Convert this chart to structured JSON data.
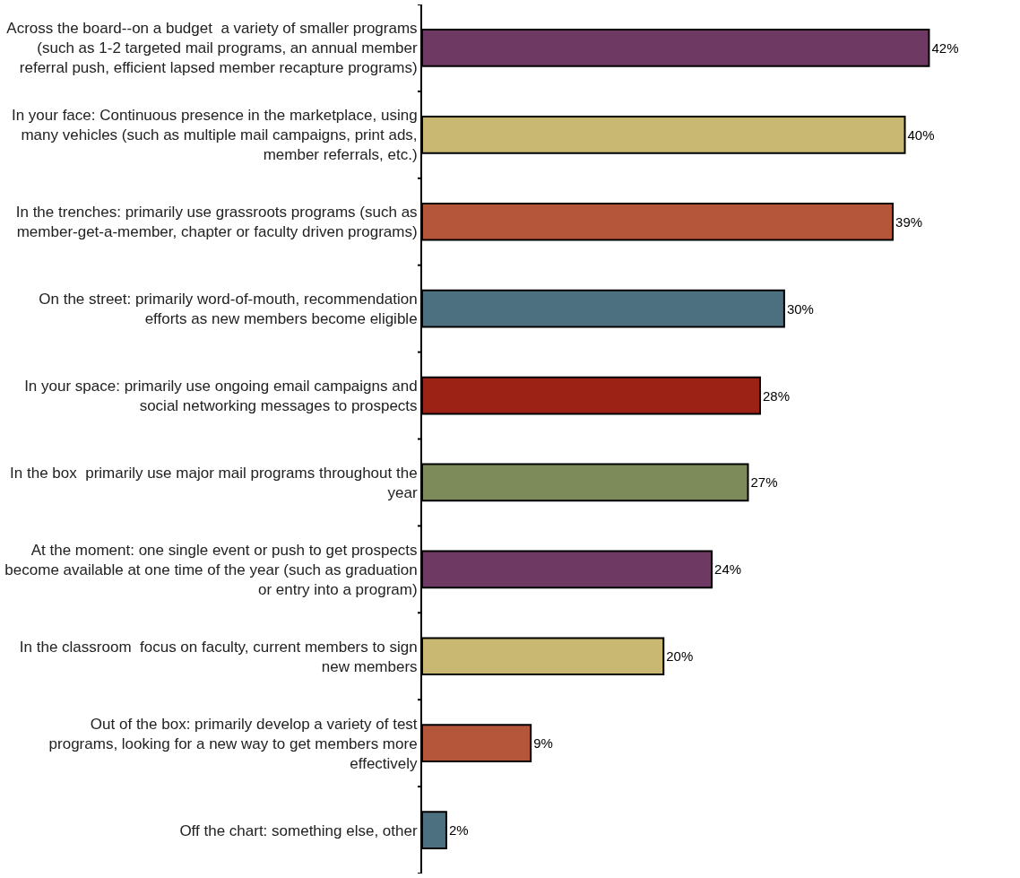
{
  "chart_data": {
    "type": "bar",
    "orientation": "horizontal",
    "categories": [
      "Across the board--on a budget  a variety of smaller programs (such as 1-2 targeted mail programs, an annual member referral push, efficient lapsed member recapture programs)",
      "In your face: Continuous presence in the marketplace, using many vehicles (such as multiple mail campaigns, print ads, member referrals, etc.)",
      "In the trenches: primarily use grassroots programs (such as member-get-a-member, chapter or faculty driven programs)",
      "On the street: primarily word-of-mouth, recommendation efforts as new members become eligible",
      "In your space: primarily use ongoing email campaigns and social networking messages to prospects",
      "In the box  primarily use major mail programs throughout the year",
      "At the moment: one single event or push to get prospects become available at one time of the year (such as graduation or entry into a program)",
      "In the classroom  focus on faculty, current members to sign new members",
      "Out of the box: primarily develop a variety of test programs, looking for a new way to get members more effectively",
      "Off the chart: something else, other"
    ],
    "values": [
      42,
      40,
      39,
      30,
      28,
      27,
      24,
      20,
      9,
      2
    ],
    "value_labels": [
      "42%",
      "40%",
      "39%",
      "30%",
      "28%",
      "27%",
      "24%",
      "20%",
      "9%",
      "2%"
    ],
    "colors": [
      "#6e3a63",
      "#c9b872",
      "#b5553a",
      "#4d7080",
      "#9c2216",
      "#7d8a5a",
      "#6e3a63",
      "#c9b872",
      "#b5553a",
      "#4d7080"
    ],
    "data_labels": false
  }
}
